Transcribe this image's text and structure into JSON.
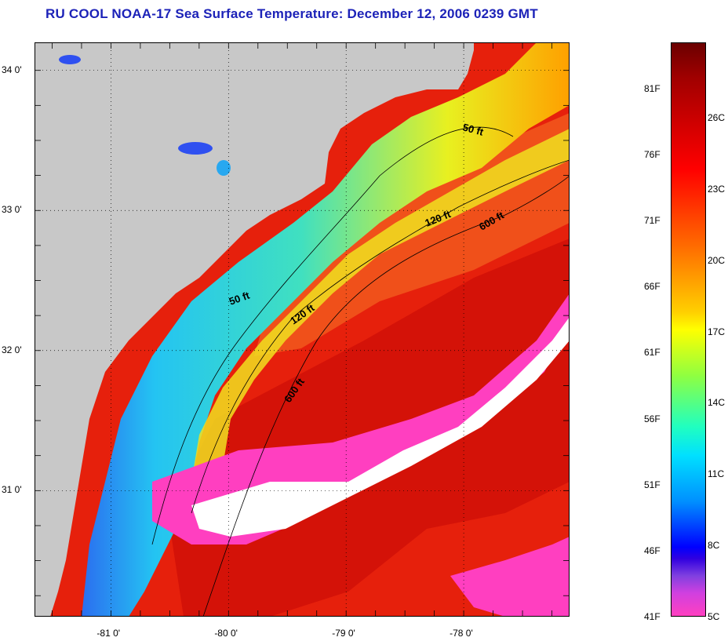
{
  "title": "RU COOL  NOAA-17  Sea Surface Temperature:  December 12, 2006 0239 GMT",
  "map": {
    "lat_ticks": [
      {
        "value": 34.0,
        "label": "34 0'"
      },
      {
        "value": 33.0,
        "label": "33 0'"
      },
      {
        "value": 32.0,
        "label": "32 0'"
      },
      {
        "value": 31.0,
        "label": "31 0'"
      }
    ],
    "lon_ticks": [
      {
        "value": -81.0,
        "label": "-81 0'"
      },
      {
        "value": -80.0,
        "label": "-80 0'"
      },
      {
        "value": -79.0,
        "label": "-79 0'"
      },
      {
        "value": -78.0,
        "label": "-78 0'"
      }
    ],
    "contours": [
      "50 ft",
      "50 ft",
      "120 ft",
      "120 ft",
      "600 ft",
      "600 ft"
    ]
  },
  "colorbar": {
    "fahrenheit": [
      "81F",
      "76F",
      "71F",
      "66F",
      "61F",
      "56F",
      "51F",
      "46F",
      "41F"
    ],
    "celsius": [
      "26C",
      "23C",
      "20C",
      "17C",
      "14C",
      "11C",
      "8C",
      "5C"
    ]
  },
  "colors": {
    "title": "#1c22b8",
    "land": "#c8c8c8",
    "warm": "#e81a0a",
    "cool": "#27c8f0",
    "cloud": "#ff40c0"
  }
}
